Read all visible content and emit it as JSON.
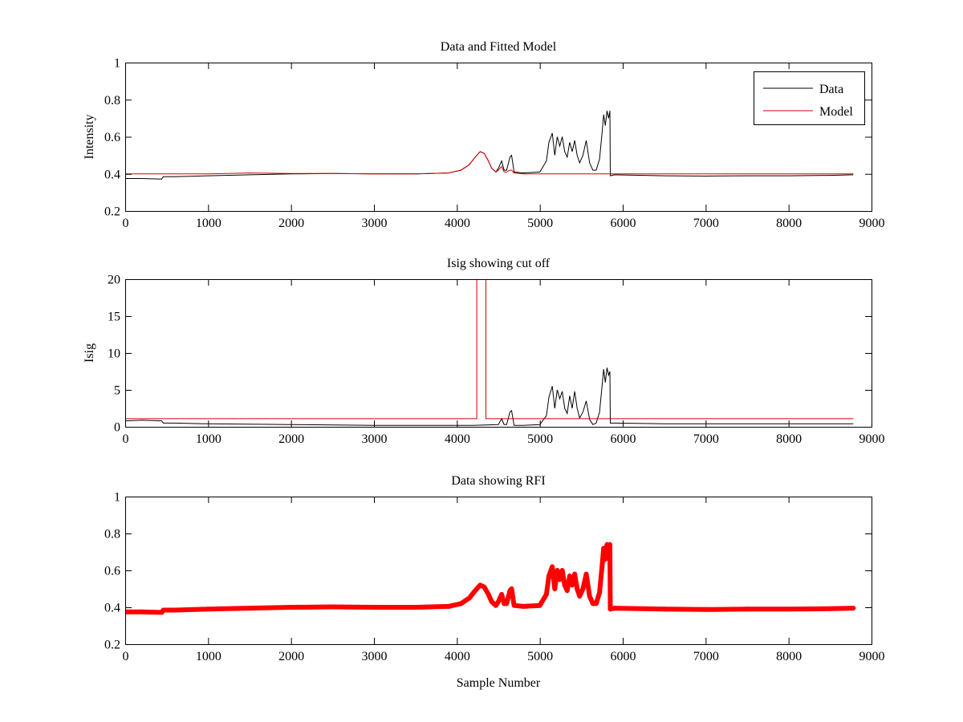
{
  "figure": {
    "background": "#ffffff"
  },
  "chart_data": [
    {
      "type": "line",
      "title": "Data and Fitted Model",
      "xlabel": "",
      "ylabel": "Intensity",
      "xlim": [
        0,
        9000
      ],
      "ylim": [
        0.2,
        1
      ],
      "xticks": [
        0,
        1000,
        2000,
        3000,
        4000,
        5000,
        6000,
        7000,
        8000,
        9000
      ],
      "yticks": [
        0.2,
        0.4,
        0.6,
        0.8,
        1
      ],
      "ytick_labels": [
        "0.2",
        "0.4",
        "0.6",
        "0.8",
        "1"
      ],
      "legend": {
        "position": "top-right",
        "entries": [
          "Data",
          "Model"
        ]
      },
      "grid": false,
      "series": [
        {
          "name": "Data",
          "color": "#000000",
          "style": "line",
          "x": [
            0,
            200,
            440,
            460,
            600,
            1000,
            1500,
            2000,
            2500,
            3000,
            3500,
            3900,
            4050,
            4150,
            4220,
            4280,
            4330,
            4380,
            4420,
            4470,
            4500,
            4540,
            4570,
            4600,
            4640,
            4660,
            4690,
            4800,
            5000,
            5080,
            5110,
            5150,
            5180,
            5210,
            5240,
            5270,
            5300,
            5330,
            5360,
            5390,
            5420,
            5450,
            5480,
            5520,
            5560,
            5600,
            5640,
            5680,
            5720,
            5750,
            5770,
            5790,
            5810,
            5830,
            5845,
            5850,
            5900,
            6500,
            7000,
            7500,
            8000,
            8500,
            8780
          ],
          "y": [
            0.375,
            0.375,
            0.372,
            0.385,
            0.385,
            0.39,
            0.395,
            0.4,
            0.402,
            0.4,
            0.4,
            0.405,
            0.42,
            0.45,
            0.49,
            0.52,
            0.51,
            0.47,
            0.43,
            0.41,
            0.43,
            0.47,
            0.42,
            0.42,
            0.49,
            0.5,
            0.41,
            0.405,
            0.41,
            0.47,
            0.57,
            0.62,
            0.5,
            0.6,
            0.55,
            0.6,
            0.52,
            0.49,
            0.57,
            0.52,
            0.58,
            0.5,
            0.46,
            0.5,
            0.58,
            0.46,
            0.42,
            0.42,
            0.48,
            0.62,
            0.72,
            0.66,
            0.74,
            0.7,
            0.74,
            0.39,
            0.395,
            0.39,
            0.388,
            0.39,
            0.39,
            0.392,
            0.395
          ]
        },
        {
          "name": "Model",
          "color": "#d40000",
          "style": "line",
          "x": [
            0,
            1000,
            1500,
            2000,
            2500,
            3000,
            3500,
            3900,
            4050,
            4150,
            4220,
            4280,
            4330,
            4380,
            4420,
            4470,
            4500,
            4540,
            4570,
            4600,
            4640,
            4660,
            4690,
            4800,
            8780
          ],
          "y": [
            0.4,
            0.4,
            0.405,
            0.402,
            0.402,
            0.4,
            0.4,
            0.405,
            0.42,
            0.45,
            0.49,
            0.52,
            0.51,
            0.47,
            0.43,
            0.41,
            0.42,
            0.44,
            0.41,
            0.41,
            0.42,
            0.42,
            0.405,
            0.4,
            0.4
          ]
        }
      ]
    },
    {
      "type": "line",
      "title": "Isig showing cut off",
      "xlabel": "",
      "ylabel": "Isig",
      "xlim": [
        0,
        9000
      ],
      "ylim": [
        0,
        20
      ],
      "xticks": [
        0,
        1000,
        2000,
        3000,
        4000,
        5000,
        6000,
        7000,
        8000,
        9000
      ],
      "yticks": [
        0,
        5,
        10,
        15,
        20
      ],
      "ytick_labels": [
        "0",
        "5",
        "10",
        "15",
        "20"
      ],
      "grid": false,
      "series": [
        {
          "color": "#000000",
          "style": "line",
          "x": [
            0,
            200,
            440,
            460,
            600,
            1000,
            2000,
            3000,
            4000,
            4200,
            4500,
            4540,
            4570,
            4600,
            4640,
            4660,
            4690,
            4800,
            5000,
            5080,
            5110,
            5150,
            5180,
            5210,
            5240,
            5270,
            5300,
            5330,
            5360,
            5390,
            5420,
            5450,
            5480,
            5520,
            5560,
            5600,
            5640,
            5680,
            5720,
            5750,
            5770,
            5790,
            5810,
            5830,
            5845,
            5850,
            5900,
            6500,
            7000,
            8000,
            8780
          ],
          "y": [
            0.8,
            0.9,
            0.8,
            0.5,
            0.5,
            0.4,
            0.3,
            0.2,
            0.2,
            0.2,
            0.3,
            1.1,
            0.3,
            0.3,
            2,
            2.2,
            0.2,
            0.2,
            0.3,
            1.5,
            4,
            5.5,
            2.5,
            5,
            3.8,
            4.8,
            2.5,
            1.8,
            4.2,
            2.5,
            4.8,
            2.5,
            1.2,
            2,
            3.5,
            1,
            0.3,
            0.5,
            2,
            5.5,
            7.8,
            6,
            8,
            7,
            7.5,
            0.5,
            0.5,
            0.4,
            0.4,
            0.4,
            0.4
          ]
        },
        {
          "color": "#d40000",
          "style": "line",
          "x": [
            0,
            4240,
            4240,
            4350,
            4350,
            8780
          ],
          "y": [
            1.1,
            1.1,
            20,
            20,
            1.1,
            1.1
          ]
        }
      ]
    },
    {
      "type": "scatter",
      "title": "Data showing RFI",
      "xlabel": "Sample Number",
      "ylabel": "",
      "xlim": [
        0,
        9000
      ],
      "ylim": [
        0.2,
        1
      ],
      "xticks": [
        0,
        1000,
        2000,
        3000,
        4000,
        5000,
        6000,
        7000,
        8000,
        9000
      ],
      "yticks": [
        0.2,
        0.4,
        0.6,
        0.8,
        1
      ],
      "ytick_labels": [
        "0.2",
        "0.4",
        "0.6",
        "0.8",
        "1"
      ],
      "grid": false,
      "series": [
        {
          "color": "#ff0000",
          "style": "markers",
          "x": [
            0,
            200,
            440,
            460,
            600,
            1000,
            1500,
            2000,
            2500,
            3000,
            3500,
            3900,
            4050,
            4150,
            4220,
            4280,
            4330,
            4380,
            4420,
            4470,
            4500,
            4540,
            4570,
            4600,
            4640,
            4660,
            4690,
            4800,
            5000,
            5080,
            5110,
            5150,
            5180,
            5210,
            5240,
            5270,
            5300,
            5330,
            5360,
            5390,
            5420,
            5450,
            5480,
            5520,
            5560,
            5600,
            5640,
            5680,
            5720,
            5750,
            5770,
            5790,
            5810,
            5830,
            5845,
            5850,
            5900,
            6500,
            7000,
            7500,
            8000,
            8500,
            8780
          ],
          "y": [
            0.375,
            0.375,
            0.372,
            0.385,
            0.385,
            0.39,
            0.395,
            0.4,
            0.402,
            0.4,
            0.4,
            0.405,
            0.42,
            0.45,
            0.49,
            0.52,
            0.51,
            0.47,
            0.43,
            0.41,
            0.43,
            0.47,
            0.42,
            0.42,
            0.49,
            0.5,
            0.41,
            0.405,
            0.41,
            0.47,
            0.57,
            0.62,
            0.5,
            0.6,
            0.55,
            0.6,
            0.52,
            0.49,
            0.57,
            0.52,
            0.58,
            0.5,
            0.46,
            0.5,
            0.58,
            0.46,
            0.42,
            0.42,
            0.48,
            0.62,
            0.72,
            0.66,
            0.74,
            0.7,
            0.74,
            0.39,
            0.395,
            0.39,
            0.388,
            0.39,
            0.39,
            0.392,
            0.395
          ]
        }
      ]
    }
  ]
}
